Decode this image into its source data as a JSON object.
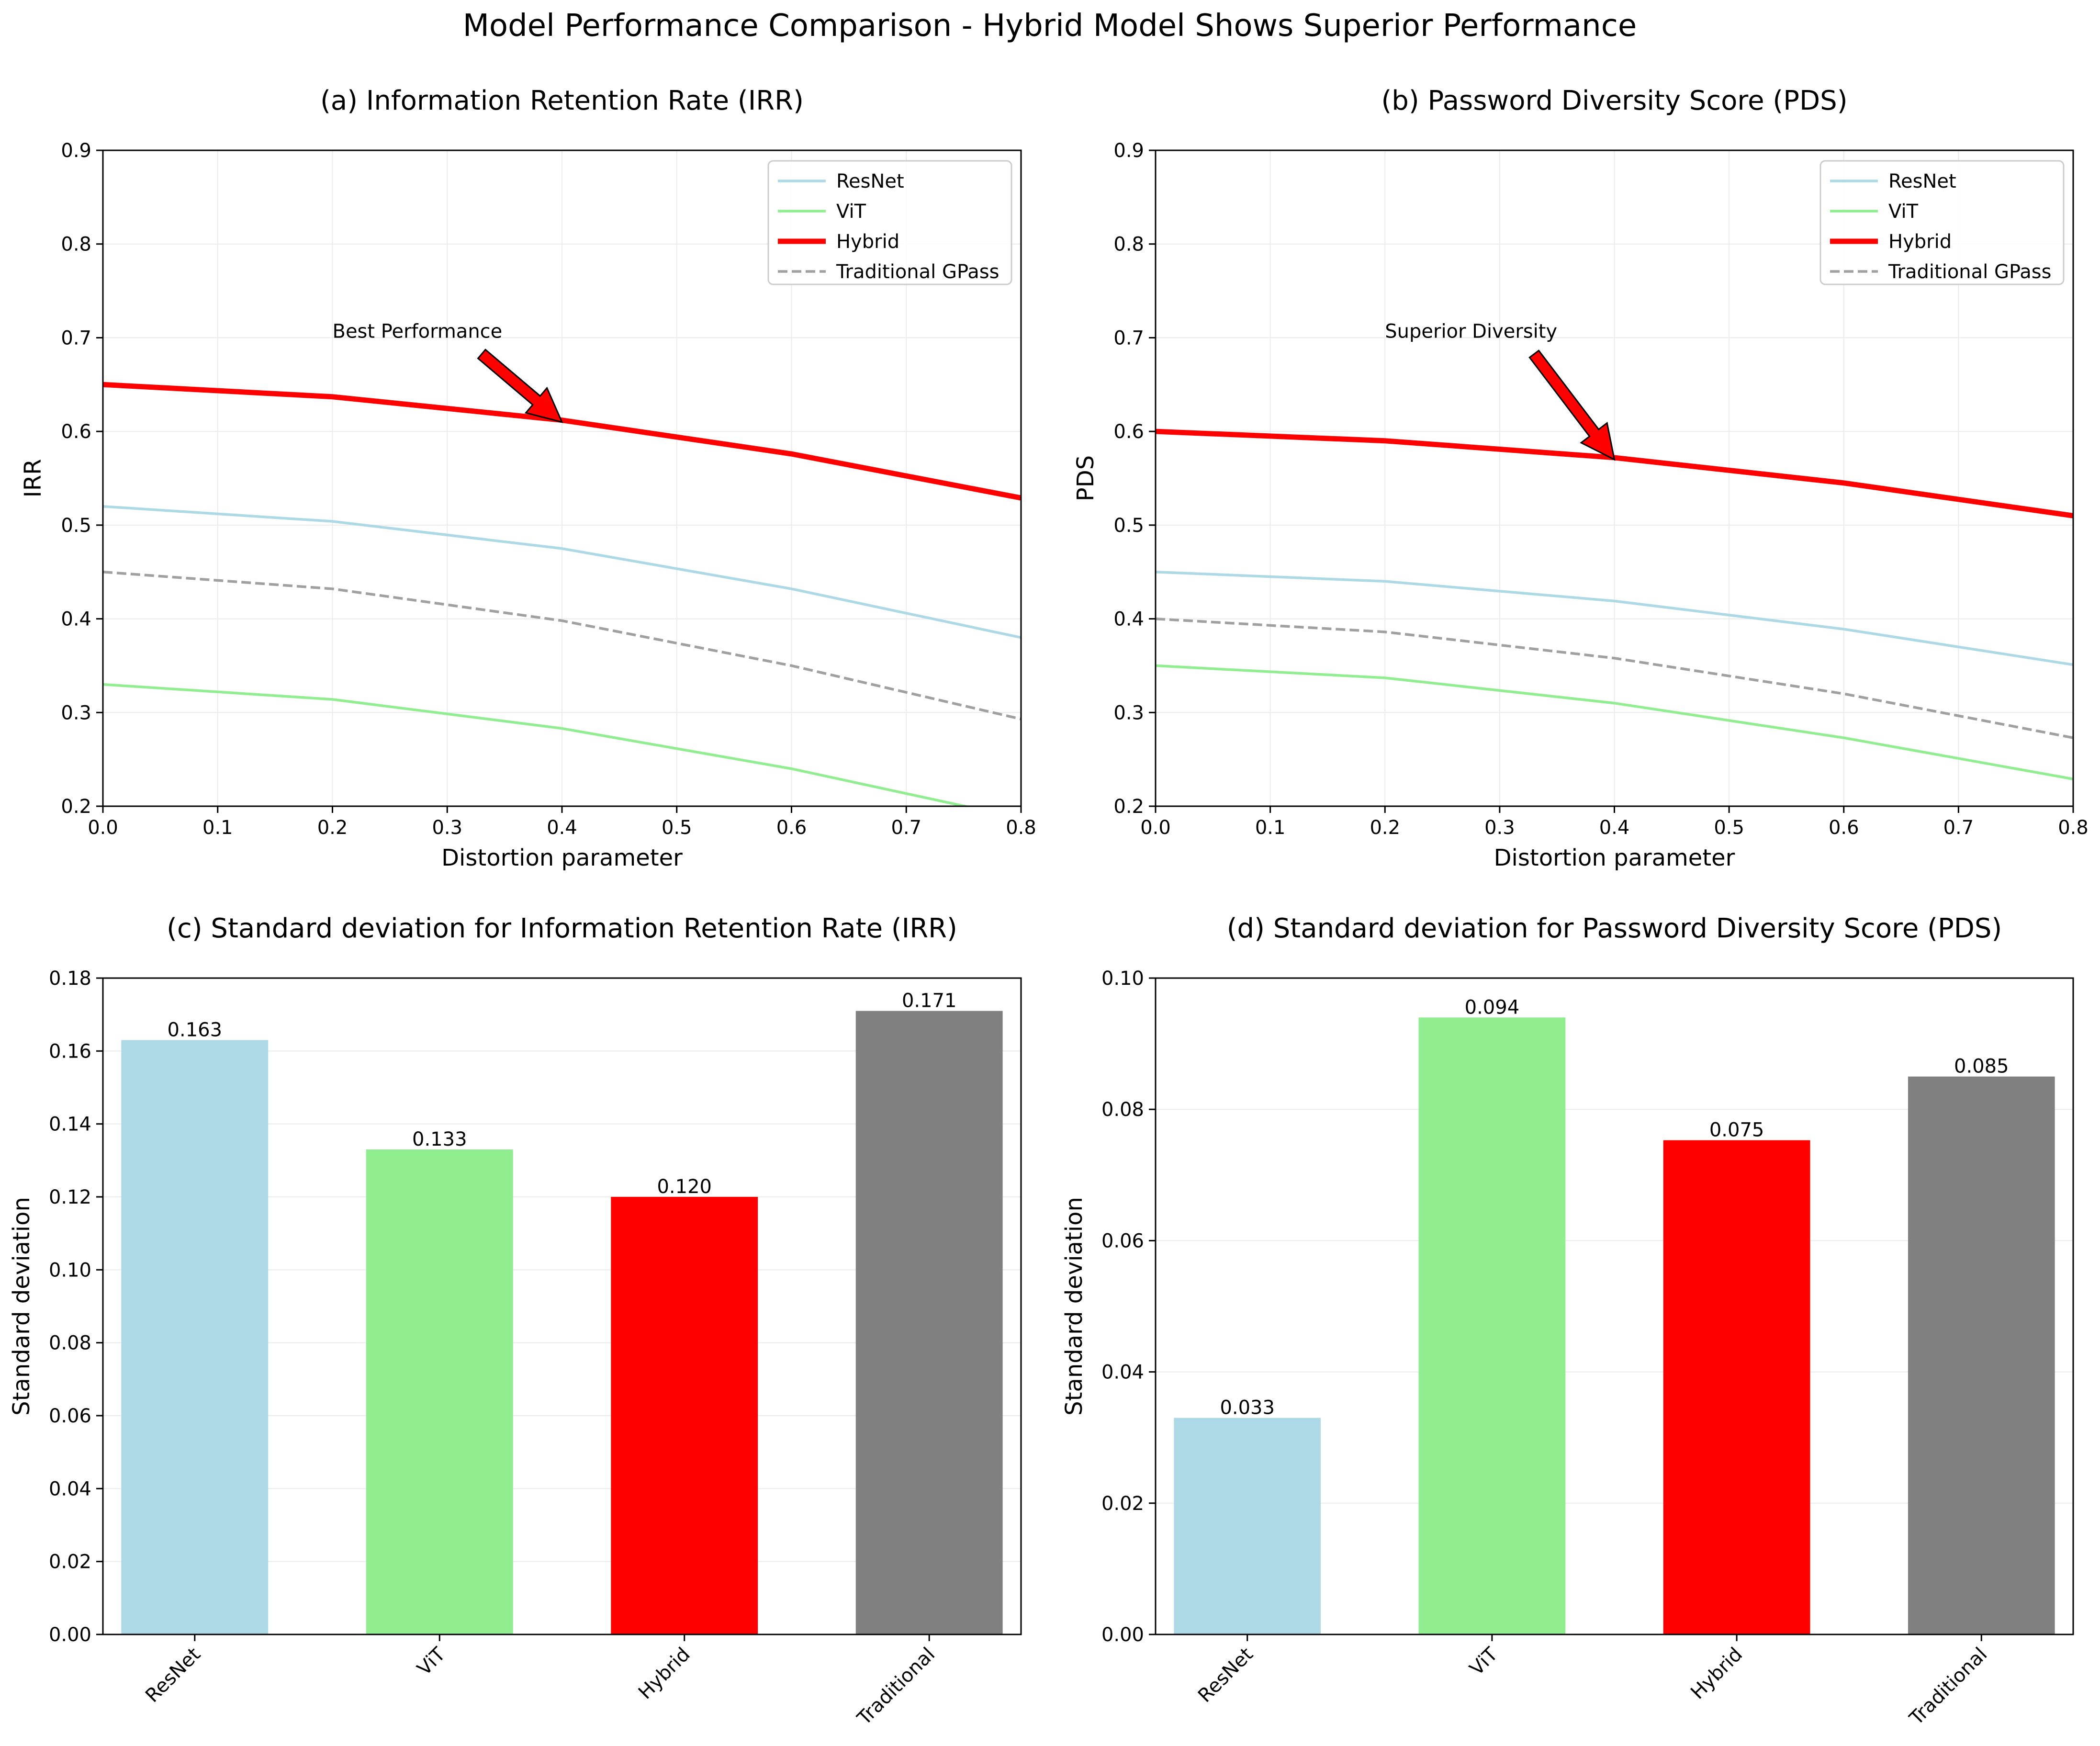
{
  "suptitle": "Model Performance Comparison - Hybrid Model Shows Superior Performance",
  "colors": {
    "resnet": "#add8e6",
    "vit": "#90ee90",
    "hybrid": "#ff0000",
    "traditional": "#808080",
    "traditional_line": "#a0a0a0",
    "grid": "#ebebeb",
    "arrow_fill": "#ff0000"
  },
  "chart_data": [
    {
      "type": "line",
      "title": "(a) Information Retention Rate (IRR)",
      "xlabel": "Distortion parameter",
      "ylabel": "IRR",
      "xlim": [
        0,
        0.8
      ],
      "ylim": [
        0.2,
        0.9
      ],
      "xticks": [
        "0.0",
        "0.1",
        "0.2",
        "0.3",
        "0.4",
        "0.5",
        "0.6",
        "0.7",
        "0.8"
      ],
      "yticks": [
        "0.2",
        "0.3",
        "0.4",
        "0.5",
        "0.6",
        "0.7",
        "0.8",
        "0.9"
      ],
      "grid": true,
      "legend_position": "upper right",
      "x": [
        0.0,
        0.2,
        0.4,
        0.6,
        0.8
      ],
      "series": [
        {
          "name": "ResNet",
          "values": [
            0.52,
            0.504,
            0.475,
            0.432,
            0.38
          ]
        },
        {
          "name": "ViT",
          "values": [
            0.33,
            0.314,
            0.283,
            0.24,
            0.187
          ]
        },
        {
          "name": "Hybrid",
          "values": [
            0.65,
            0.637,
            0.612,
            0.576,
            0.529
          ]
        },
        {
          "name": "Traditional GPass",
          "values": [
            0.45,
            0.432,
            0.398,
            0.35,
            0.293
          ]
        }
      ],
      "annotation": {
        "text": "Best Performance",
        "x": 0.4,
        "y": 0.612,
        "text_x": 0.2,
        "text_y": 0.7
      }
    },
    {
      "type": "line",
      "title": "(b) Password Diversity Score (PDS)",
      "xlabel": "Distortion parameter",
      "ylabel": "PDS",
      "xlim": [
        0,
        0.8
      ],
      "ylim": [
        0.2,
        0.9
      ],
      "xticks": [
        "0.0",
        "0.1",
        "0.2",
        "0.3",
        "0.4",
        "0.5",
        "0.6",
        "0.7",
        "0.8"
      ],
      "yticks": [
        "0.2",
        "0.3",
        "0.4",
        "0.5",
        "0.6",
        "0.7",
        "0.8",
        "0.9"
      ],
      "grid": true,
      "legend_position": "upper right",
      "x": [
        0.0,
        0.2,
        0.4,
        0.6,
        0.8
      ],
      "series": [
        {
          "name": "ResNet",
          "values": [
            0.45,
            0.44,
            0.419,
            0.389,
            0.351
          ]
        },
        {
          "name": "ViT",
          "values": [
            0.35,
            0.337,
            0.31,
            0.273,
            0.229
          ]
        },
        {
          "name": "Hybrid",
          "values": [
            0.6,
            0.59,
            0.572,
            0.545,
            0.51
          ]
        },
        {
          "name": "Traditional GPass",
          "values": [
            0.4,
            0.386,
            0.358,
            0.32,
            0.273
          ]
        }
      ],
      "annotation": {
        "text": "Superior Diversity",
        "x": 0.4,
        "y": 0.572,
        "text_x": 0.2,
        "text_y": 0.7
      }
    },
    {
      "type": "bar",
      "title": "(c) Standard deviation for Information Retention Rate (IRR)",
      "xlabel": "",
      "ylabel": "Standard deviation",
      "categories": [
        "ResNet",
        "ViT",
        "Hybrid",
        "Traditional"
      ],
      "values": [
        0.163,
        0.133,
        0.12,
        0.171
      ],
      "labels": [
        "0.163",
        "0.133",
        "0.120",
        "0.171"
      ],
      "ylim": [
        0,
        0.18
      ],
      "yticks": [
        "0.00",
        "0.02",
        "0.04",
        "0.06",
        "0.08",
        "0.10",
        "0.12",
        "0.14",
        "0.16",
        "0.18"
      ],
      "grid": true
    },
    {
      "type": "bar",
      "title": "(d) Standard deviation for Password Diversity Score (PDS)",
      "xlabel": "",
      "ylabel": "Standard deviation",
      "categories": [
        "ResNet",
        "ViT",
        "Hybrid",
        "Traditional"
      ],
      "values": [
        0.033,
        0.094,
        0.0753,
        0.085
      ],
      "labels": [
        "0.033",
        "0.094",
        "0.075",
        "0.085"
      ],
      "ylim": [
        0,
        0.1
      ],
      "yticks": [
        "0.00",
        "0.02",
        "0.04",
        "0.06",
        "0.08",
        "0.10"
      ],
      "grid": true
    }
  ]
}
